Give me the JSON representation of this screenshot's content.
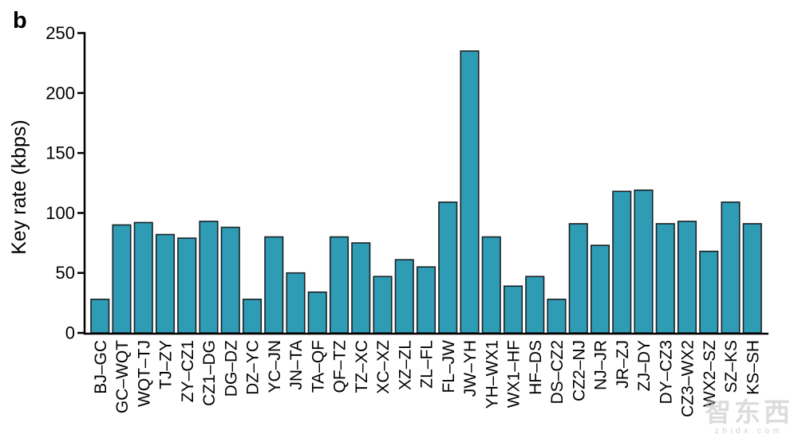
{
  "panel_label": "b",
  "chart_data": {
    "type": "bar",
    "title": "",
    "xlabel": "",
    "ylabel": "Key rate (kbps)",
    "ylim": [
      0,
      250
    ],
    "yticks": [
      0,
      50,
      100,
      150,
      200,
      250
    ],
    "grid": false,
    "legend": "none",
    "bar_color": "#2F9CB5",
    "bar_edge_color": "#1B2026",
    "axis_color": "#000000",
    "categories": [
      "BJ–GC",
      "GC–WQT",
      "WQT–TJ",
      "TJ–ZY",
      "ZY–CZ1",
      "CZ1–DG",
      "DG–DZ",
      "DZ–YC",
      "YC–JN",
      "JN–TA",
      "TA–QF",
      "QF–TZ",
      "TZ–XC",
      "XC–XZ",
      "XZ–ZL",
      "ZL–FL",
      "FL–JW",
      "JW–YH",
      "YH–WX1",
      "WX1–HF",
      "HF–DS",
      "DS–CZ2",
      "CZ2–NJ",
      "NJ–JR",
      "JR–ZJ",
      "ZJ–DY",
      "DY–CZ3",
      "CZ3–WX2",
      "WX2–SZ",
      "SZ–KS",
      "KS–SH"
    ],
    "values": [
      28,
      90,
      92,
      82,
      79,
      93,
      88,
      28,
      80,
      50,
      34,
      80,
      75,
      47,
      61,
      55,
      109,
      235,
      80,
      39,
      47,
      28,
      91,
      73,
      118,
      119,
      91,
      93,
      68,
      109,
      91
    ]
  },
  "watermark": {
    "logo": "智东西",
    "url": "zhidx.com"
  }
}
